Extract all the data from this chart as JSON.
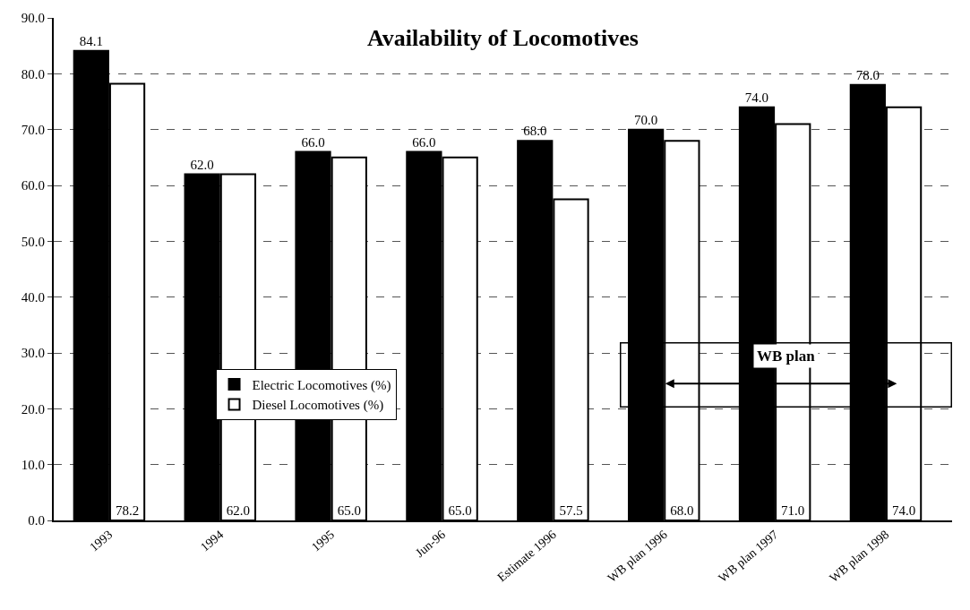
{
  "chart_data": {
    "type": "bar",
    "title": "Availability of Locomotives",
    "categories": [
      "1993",
      "1994",
      "1995",
      "Jun-96",
      "Estimate 1996",
      "WB plan 1996",
      "WB plan 1997",
      "WB plan 1998"
    ],
    "series": [
      {
        "name": "Electric Locomotives (%)",
        "color": "#000000",
        "values": [
          84.1,
          62.0,
          66.0,
          66.0,
          68.0,
          70.0,
          74.0,
          78.0
        ],
        "value_labels": [
          "84.1",
          "62.0",
          "66.0",
          "66.0",
          "68.0",
          "70.0",
          "74.0",
          "78.0"
        ]
      },
      {
        "name": "Diesel Locomotives (%)",
        "color": "#ffffff",
        "values": [
          78.2,
          62.0,
          65.0,
          65.0,
          57.5,
          68.0,
          71.0,
          74.0
        ],
        "value_labels": [
          "78.2",
          "62.0",
          "65.0",
          "65.0",
          "57.5",
          "68.0",
          "71.0",
          "74.0"
        ]
      }
    ],
    "ylim": [
      0,
      90
    ],
    "yticks": [
      {
        "value": 0,
        "label": "0.0"
      },
      {
        "value": 10,
        "label": "10.0"
      },
      {
        "value": 20,
        "label": "20.0"
      },
      {
        "value": 30,
        "label": "30.0"
      },
      {
        "value": 40,
        "label": "40.0"
      },
      {
        "value": 50,
        "label": "50.0"
      },
      {
        "value": 60,
        "label": "60.0"
      },
      {
        "value": 70,
        "label": "70.0"
      },
      {
        "value": 80,
        "label": "80.0"
      },
      {
        "value": 90,
        "label": "90.0"
      }
    ],
    "grid": "y",
    "legend": "bottom left",
    "annotations": [
      "WB plan"
    ]
  }
}
